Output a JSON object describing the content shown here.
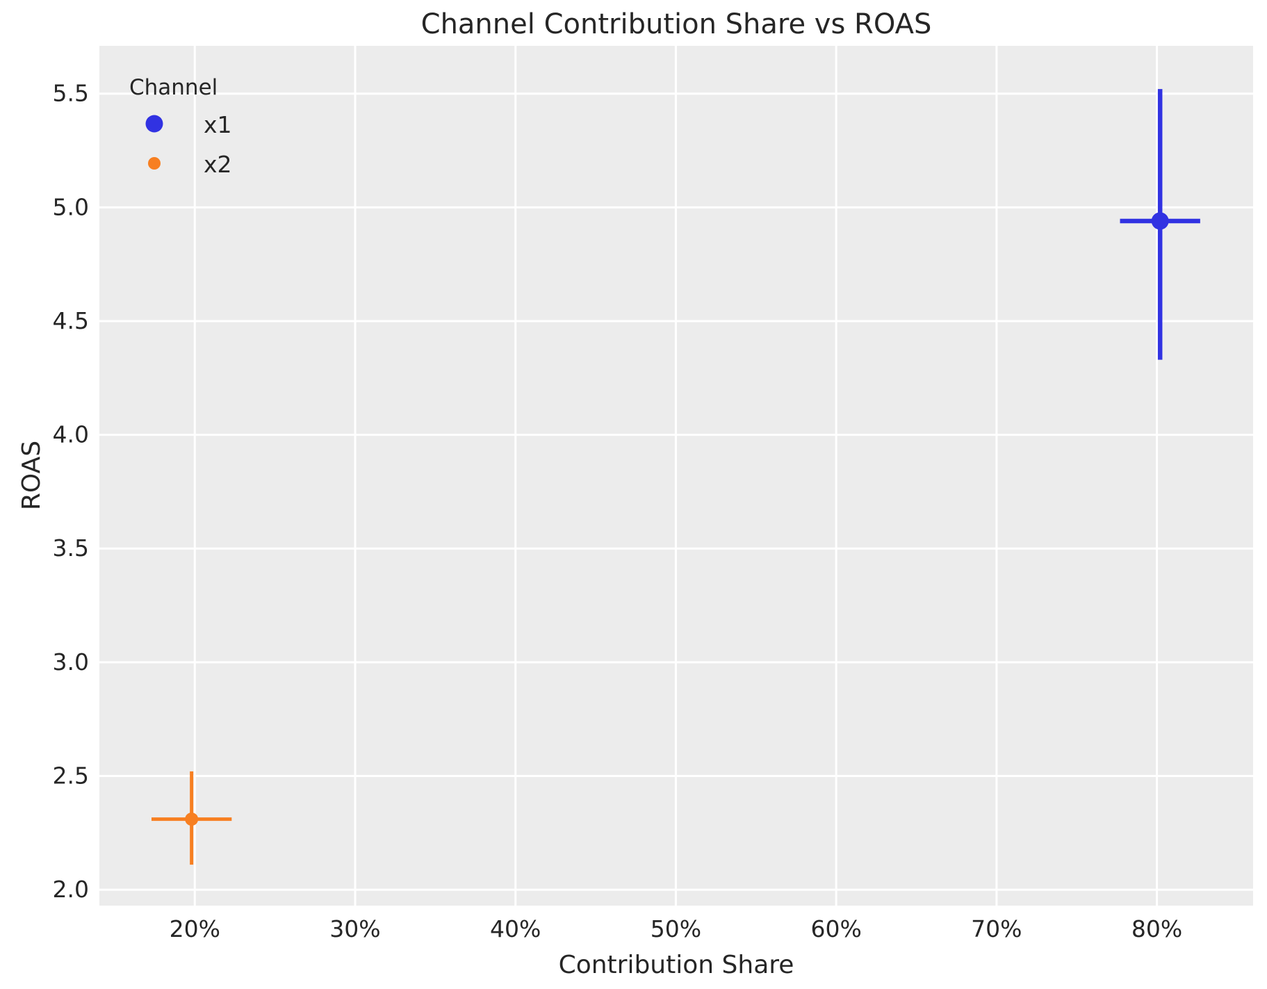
{
  "figure": {
    "title": "Channel Contribution Share vs ROAS",
    "xlabel": "Contribution Share",
    "ylabel": "ROAS"
  },
  "legend": {
    "title": "Channel",
    "entries": [
      {
        "label": "x1",
        "color": "#3132e2",
        "marker": "circle-large"
      },
      {
        "label": "x2",
        "color": "#f77f21",
        "marker": "circle-small"
      }
    ]
  },
  "chart_data": {
    "type": "scatter",
    "title": "Channel Contribution Share vs ROAS",
    "xlabel": "Contribution Share",
    "ylabel": "ROAS",
    "legend_title": "Channel",
    "legend_position": "upper-left",
    "grid": true,
    "xlim": [
      14.05,
      86.0
    ],
    "ylim": [
      1.93,
      5.71
    ],
    "x_ticks": [
      20,
      30,
      40,
      50,
      60,
      70,
      80
    ],
    "x_tick_labels": [
      "20%",
      "30%",
      "40%",
      "50%",
      "60%",
      "70%",
      "80%"
    ],
    "y_ticks": [
      2.0,
      2.5,
      3.0,
      3.5,
      4.0,
      4.5,
      5.0,
      5.5
    ],
    "y_tick_labels": [
      "2.0",
      "2.5",
      "3.0",
      "3.5",
      "4.0",
      "4.5",
      "5.0",
      "5.5"
    ],
    "series": [
      {
        "name": "x1",
        "color": "#3132e2",
        "x": 80.2,
        "y": 4.94,
        "xerr": 2.5,
        "yerr_plus": 0.58,
        "yerr_minus": 0.61,
        "marker_radius": 12.5,
        "error_line_width": 6.5
      },
      {
        "name": "x2",
        "color": "#f77f21",
        "x": 19.8,
        "y": 2.31,
        "xerr": 2.5,
        "yerr_plus": 0.21,
        "yerr_minus": 0.2,
        "marker_radius": 9.5,
        "error_line_width": 5
      }
    ],
    "style": {
      "plot_background": "#ececec",
      "grid_color": "#ffffff",
      "text_color": "#262626",
      "figure_background": "#ffffff"
    }
  }
}
